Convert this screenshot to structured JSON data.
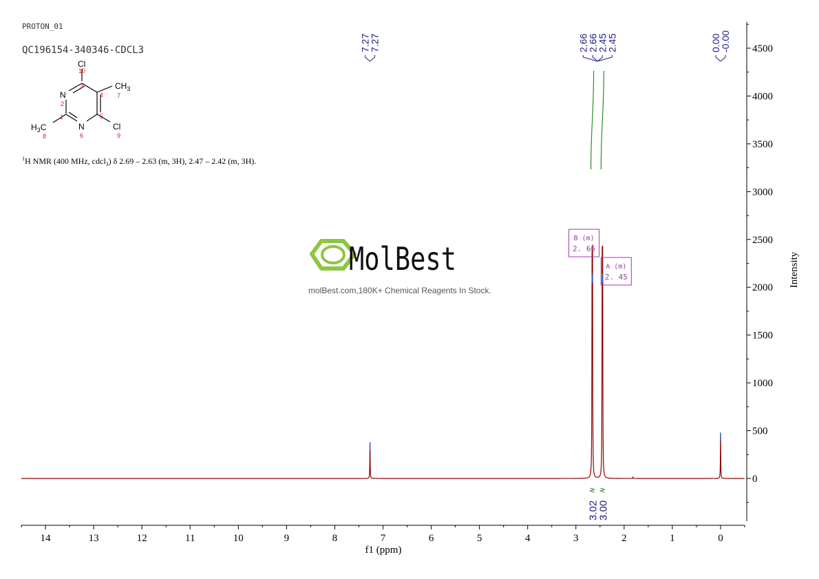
{
  "header": {
    "experiment": "PROTON_01",
    "sample": "QC196154-340346-CDCL3"
  },
  "structure": {
    "labels": {
      "cl_top": "Cl",
      "n_top": "N",
      "ch3_right": "CH",
      "ch3_right_sub": "3",
      "h3c_left": "H",
      "h3c_left_sub": "3",
      "h3c_left_c": "C",
      "n_bottom": "N",
      "cl_right": "Cl"
    },
    "atom_numbers": [
      "1",
      "2",
      "3",
      "4",
      "5",
      "6",
      "7",
      "8",
      "9",
      "10"
    ]
  },
  "nmr_description": {
    "sup": "1",
    "text": "H NMR (400 MHz, cdcl",
    "sub": "3",
    "text2": ") δ 2.69 – 2.63 (m, 3H), 2.47 – 2.42 (m, 3H)."
  },
  "watermark": {
    "brand": "MolBest",
    "tagline": "molBest.com,180K+ Chemical Reagents In Stock."
  },
  "colors": {
    "spectrum": "#8b0000",
    "peak_labels": "#1a1a8c",
    "integral": "#2e8b2e",
    "multiplet_box": "#9a3aa8",
    "logo_green": "#8dc63f"
  },
  "chart_data": {
    "type": "line",
    "xlabel": "f1 (ppm)",
    "ylabel": "Intensity",
    "xlim": [
      14.5,
      -0.5
    ],
    "ylim": [
      -500,
      4800
    ],
    "x_ticks": [
      14,
      13,
      12,
      11,
      10,
      9,
      8,
      7,
      6,
      5,
      4,
      3,
      2,
      1,
      0
    ],
    "y_ticks": [
      0,
      500,
      1000,
      1500,
      2000,
      2500,
      3000,
      3500,
      4000,
      4500
    ],
    "y_tick_labels": [
      "0",
      "500",
      "1000",
      "1500",
      "2000",
      "2500",
      "3000",
      "3500",
      "4000",
      "4500"
    ],
    "peaks": [
      {
        "ppm": 7.27,
        "intensity": 380
      },
      {
        "ppm": 2.665,
        "intensity": 2130
      },
      {
        "ppm": 2.655,
        "intensity": 2150
      },
      {
        "ppm": 2.455,
        "intensity": 2140
      },
      {
        "ppm": 2.445,
        "intensity": 2130
      },
      {
        "ppm": 1.82,
        "intensity": 15
      },
      {
        "ppm": 0.0,
        "intensity": 480
      }
    ],
    "peak_label_groups": [
      {
        "labels": [
          "7.27",
          "7.27"
        ],
        "ppm": 7.27
      },
      {
        "labels": [
          "2.66",
          "2.66",
          "2.45",
          "2.45"
        ],
        "ppm": 2.55
      },
      {
        "labels": [
          "0.00",
          "-0.00"
        ],
        "ppm": 0.0
      }
    ],
    "multiplets": [
      {
        "letter": "B",
        "type": "(m)",
        "shift": "2. 66",
        "ppm": 2.66
      },
      {
        "letter": "A",
        "type": "(m)",
        "shift": "2. 45",
        "ppm": 2.45
      }
    ],
    "integrals": [
      {
        "ppm": 2.66,
        "value": "3.02"
      },
      {
        "ppm": 2.45,
        "value": "3.00"
      }
    ]
  }
}
